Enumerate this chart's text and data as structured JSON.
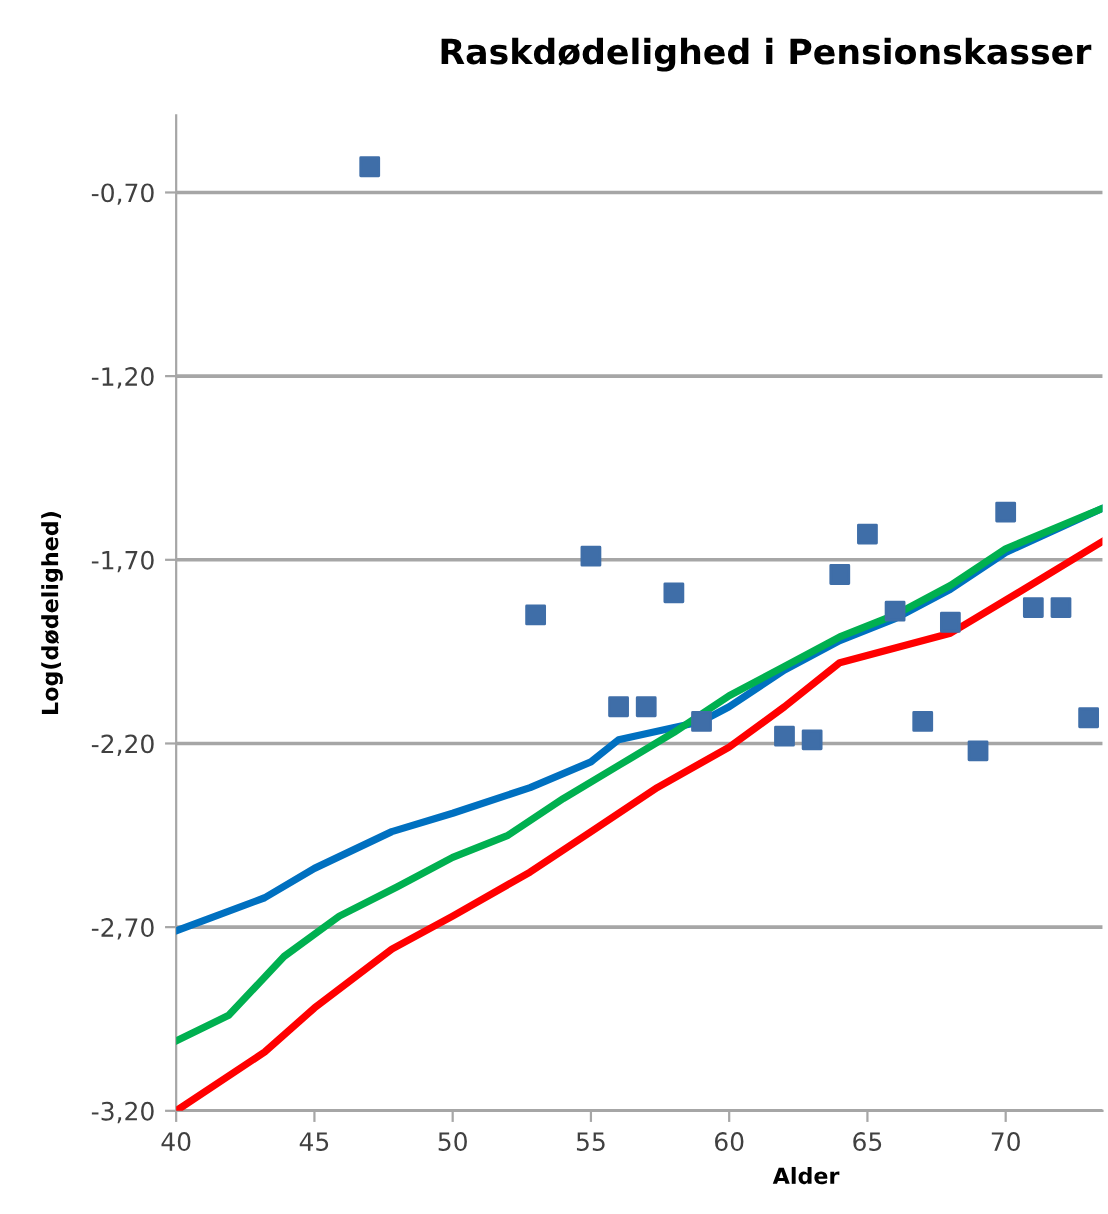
{
  "chart_data": {
    "type": "scatter",
    "title": "Raskdødelighed i Pensionskasser",
    "xlabel": "Alder",
    "ylabel": "Log(dødelighed)",
    "xlim": [
      40,
      73.5
    ],
    "xticks": [
      40,
      45,
      50,
      55,
      60,
      65,
      70
    ],
    "ylim": [
      -3.2,
      -0.49
    ],
    "yticks": [
      {
        "value": -3.2,
        "label": "-3,20"
      },
      {
        "value": -2.7,
        "label": "-2,70"
      },
      {
        "value": -2.2,
        "label": "-2,20"
      },
      {
        "value": -1.7,
        "label": "-1,70"
      },
      {
        "value": -1.2,
        "label": "-1,20"
      },
      {
        "value": -0.7,
        "label": "-0,70"
      }
    ],
    "grid": "y",
    "legend": false,
    "series": [
      {
        "marker": "square",
        "color": "#3f6ea8",
        "x": [
          47,
          53,
          55,
          56,
          57,
          58,
          59,
          62,
          63,
          64,
          65,
          66,
          67,
          68,
          69,
          70,
          71,
          72,
          73
        ],
        "values": [
          -0.63,
          -1.85,
          -1.69,
          -2.1,
          -2.1,
          -1.79,
          -2.14,
          -2.18,
          -2.19,
          -1.74,
          -1.63,
          -1.84,
          -2.14,
          -1.87,
          -2.22,
          -1.57,
          -1.83,
          -1.83,
          -2.13
        ]
      },
      {
        "type": "line",
        "line_style": "solid",
        "color": "#0070c0",
        "x": [
          40,
          43.2,
          45,
          47.8,
          50,
          52.8,
          55,
          56,
          59,
          60,
          62,
          64,
          66,
          68,
          70,
          73.5
        ],
        "values": [
          -2.71,
          -2.62,
          -2.54,
          -2.44,
          -2.39,
          -2.32,
          -2.25,
          -2.19,
          -2.14,
          -2.1,
          -2.0,
          -1.92,
          -1.86,
          -1.78,
          -1.68,
          -1.56
        ]
      },
      {
        "type": "line",
        "line_style": "solid",
        "color": "#00b050",
        "x": [
          40,
          41.9,
          43.9,
          45.9,
          48,
          50,
          52,
          54,
          56,
          58,
          60,
          62,
          64,
          66,
          68,
          70,
          73.5
        ],
        "values": [
          -3.01,
          -2.94,
          -2.78,
          -2.67,
          -2.59,
          -2.51,
          -2.45,
          -2.35,
          -2.26,
          -2.17,
          -2.07,
          -1.99,
          -1.91,
          -1.85,
          -1.77,
          -1.67,
          -1.56
        ]
      },
      {
        "type": "line",
        "line_style": "solid",
        "color": "#ff0000",
        "x": [
          40,
          43.2,
          45,
          47.8,
          50,
          52.8,
          55,
          57.4,
          60,
          62,
          64,
          66,
          68,
          70,
          73.5
        ],
        "values": [
          -3.2,
          -3.04,
          -2.92,
          -2.76,
          -2.67,
          -2.55,
          -2.44,
          -2.32,
          -2.21,
          -2.1,
          -1.98,
          -1.94,
          -1.9,
          -1.81,
          -1.65
        ]
      }
    ]
  }
}
